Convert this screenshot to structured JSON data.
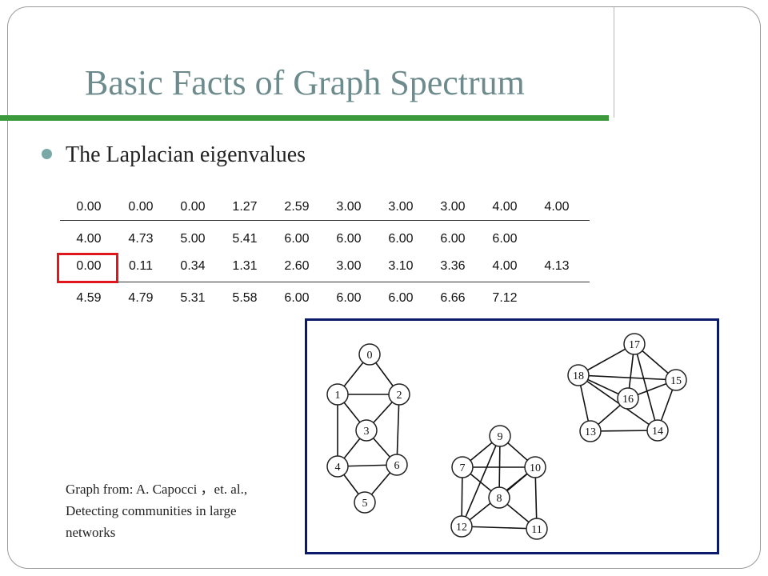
{
  "slide": {
    "title": "Basic Facts of Graph Spectrum",
    "bullet": "The Laplacian eigenvalues",
    "caption_line1": "Graph  from: A.  Capocci ，et. al.,",
    "caption_line2": "Detecting communities in large",
    "caption_line3": "networks"
  },
  "eigen_rows": [
    [
      "0.00",
      "0.00",
      "0.00",
      "1.27",
      "2.59",
      "3.00",
      "3.00",
      "3.00",
      "4.00",
      "4.00"
    ],
    [
      "4.00",
      "4.73",
      "5.00",
      "5.41",
      "6.00",
      "6.00",
      "6.00",
      "6.00",
      "6.00"
    ],
    [
      "0.00",
      "0.11",
      "0.34",
      "1.31",
      "2.60",
      "3.00",
      "3.10",
      "3.36",
      "4.00",
      "4.13"
    ],
    [
      "4.59",
      "4.79",
      "5.31",
      "5.58",
      "6.00",
      "6.00",
      "6.00",
      "6.66",
      "7.12"
    ]
  ],
  "graph": {
    "nodes": [
      "0",
      "1",
      "2",
      "3",
      "4",
      "5",
      "6",
      "7",
      "8",
      "9",
      "10",
      "11",
      "12",
      "13",
      "14",
      "15",
      "16",
      "17",
      "18"
    ],
    "edges": [
      [
        "0",
        "1"
      ],
      [
        "0",
        "2"
      ],
      [
        "1",
        "2"
      ],
      [
        "1",
        "3"
      ],
      [
        "2",
        "3"
      ],
      [
        "1",
        "4"
      ],
      [
        "2",
        "6"
      ],
      [
        "3",
        "4"
      ],
      [
        "3",
        "6"
      ],
      [
        "4",
        "6"
      ],
      [
        "4",
        "5"
      ],
      [
        "5",
        "6"
      ],
      [
        "9",
        "7"
      ],
      [
        "9",
        "10"
      ],
      [
        "9",
        "8"
      ],
      [
        "7",
        "10"
      ],
      [
        "7",
        "8"
      ],
      [
        "8",
        "10"
      ],
      [
        "7",
        "12"
      ],
      [
        "9",
        "12"
      ],
      [
        "10",
        "12"
      ],
      [
        "8",
        "11"
      ],
      [
        "10",
        "11"
      ],
      [
        "12",
        "11"
      ],
      [
        "17",
        "18"
      ],
      [
        "17",
        "15"
      ],
      [
        "17",
        "16"
      ],
      [
        "17",
        "14"
      ],
      [
        "18",
        "15"
      ],
      [
        "18",
        "16"
      ],
      [
        "18",
        "13"
      ],
      [
        "15",
        "16"
      ],
      [
        "15",
        "14"
      ],
      [
        "16",
        "13"
      ],
      [
        "13",
        "14"
      ],
      [
        "18",
        "14"
      ]
    ]
  }
}
